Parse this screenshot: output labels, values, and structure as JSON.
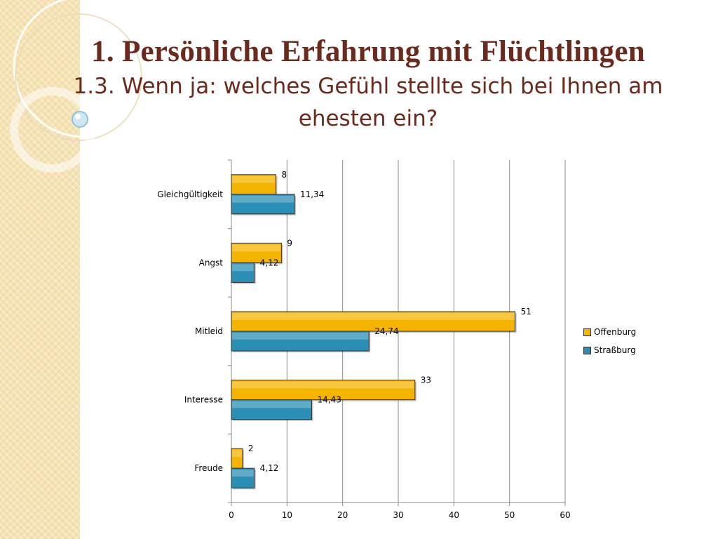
{
  "slide": {
    "title": "1. Persönliche Erfahrung mit Flüchtlingen",
    "subtitle": "1.3. Wenn ja: welches Gefühl stellte sich bei Ihnen am ehesten ein?"
  },
  "chart_data": {
    "type": "bar",
    "orientation": "horizontal",
    "categories": [
      "Gleichgültigkeit",
      "Angst",
      "Mitleid",
      "Interesse",
      "Freude"
    ],
    "series": [
      {
        "name": "Offenburg",
        "values": [
          8,
          9,
          51,
          33,
          2
        ],
        "labels": [
          "8",
          "9",
          "51",
          "33",
          "2"
        ],
        "color": "#f5b400"
      },
      {
        "name": "Straßburg",
        "values": [
          11.34,
          4.12,
          24.74,
          14.43,
          4.12
        ],
        "labels": [
          "11,34",
          "4,12",
          "24,74",
          "14,43",
          "4,12"
        ],
        "color": "#2b8fb5"
      }
    ],
    "xlim": [
      0,
      60
    ],
    "xticks": [
      0,
      10,
      20,
      30,
      40,
      50,
      60
    ],
    "grid": "vertical",
    "legend_position": "right"
  }
}
